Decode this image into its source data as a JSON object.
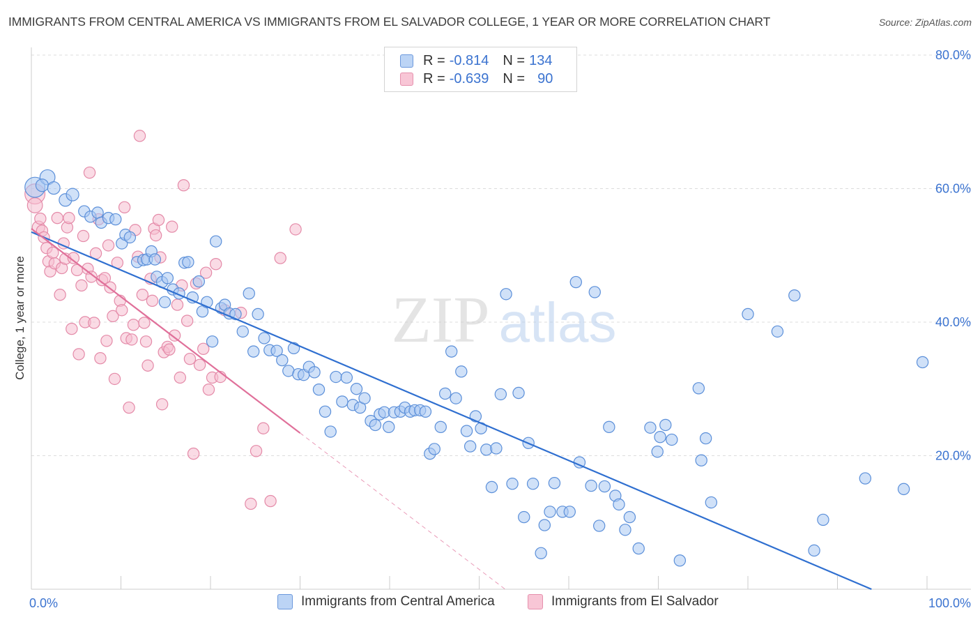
{
  "title": "IMMIGRANTS FROM CENTRAL AMERICA VS IMMIGRANTS FROM EL SALVADOR COLLEGE, 1 YEAR OR MORE CORRELATION CHART",
  "source": "Source: ZipAtlas.com",
  "watermark": {
    "zip": "ZIP",
    "atlas": "atlas"
  },
  "legend": {
    "series_a": {
      "r_label": "R =",
      "r_value": "-0.814",
      "n_label": "N =",
      "n_value": "134"
    },
    "series_b": {
      "r_label": "R =",
      "r_value": "-0.639",
      "n_label": "N =",
      "n_value": "90"
    }
  },
  "colors": {
    "blue_fill": "#a9c9f2",
    "blue_stroke": "#5b8fd9",
    "blue_line": "#2f6fd0",
    "pink_fill": "#f6bdd0",
    "pink_stroke": "#e48aa8",
    "pink_line": "#e0709a",
    "grid": "#dcdcdc",
    "tick_label": "#3b73d0"
  },
  "chart_data": {
    "type": "scatter",
    "title": "IMMIGRANTS FROM CENTRAL AMERICA VS IMMIGRANTS FROM EL SALVADOR COLLEGE, 1 YEAR OR MORE CORRELATION CHART",
    "xlabel": "",
    "ylabel": "College, 1 year or more",
    "xlim": [
      0,
      100
    ],
    "ylim": [
      0,
      80
    ],
    "x_tick_labels": [
      {
        "value": 0,
        "label": "0.0%"
      },
      {
        "value": 100,
        "label": "100.0%"
      }
    ],
    "y_ticks": [
      {
        "value": 20,
        "label": "20.0%"
      },
      {
        "value": 40,
        "label": "40.0%"
      },
      {
        "value": 60,
        "label": "60.0%"
      },
      {
        "value": 80,
        "label": "80.0%"
      }
    ],
    "series": [
      {
        "name": "Immigrants from Central America",
        "color": "#a9c9f2",
        "trend": {
          "x0": 0,
          "y0": 53.5,
          "x1": 93.8,
          "y1": 0,
          "dashed_extension": false
        },
        "points": [
          [
            0.4,
            60.2,
            1.6
          ],
          [
            1.8,
            61.7,
            1.2
          ],
          [
            1.2,
            60.5,
            1.0
          ],
          [
            2.5,
            60.1,
            1.0
          ],
          [
            3.8,
            58.3,
            1.0
          ],
          [
            4.6,
            59.1,
            1.0
          ],
          [
            5.9,
            56.6,
            0.9
          ],
          [
            6.6,
            55.8,
            0.9
          ],
          [
            7.4,
            56.4,
            0.9
          ],
          [
            7.8,
            54.9,
            0.9
          ],
          [
            8.6,
            55.6,
            0.9
          ],
          [
            9.4,
            55.4,
            0.9
          ],
          [
            10.1,
            51.8,
            0.9
          ],
          [
            10.5,
            53.1,
            0.9
          ],
          [
            11.0,
            52.7,
            0.9
          ],
          [
            11.8,
            49.0,
            0.9
          ],
          [
            12.5,
            49.3,
            0.9
          ],
          [
            12.9,
            49.4,
            0.9
          ],
          [
            13.4,
            50.6,
            0.9
          ],
          [
            13.8,
            49.4,
            0.9
          ],
          [
            14.0,
            46.8,
            0.9
          ],
          [
            14.6,
            46.0,
            0.9
          ],
          [
            14.9,
            43.0,
            0.9
          ],
          [
            15.2,
            46.6,
            0.9
          ],
          [
            15.8,
            44.9,
            0.9
          ],
          [
            16.5,
            44.3,
            0.9
          ],
          [
            17.1,
            48.9,
            0.9
          ],
          [
            17.5,
            49.0,
            0.9
          ],
          [
            18.0,
            43.7,
            0.9
          ],
          [
            18.7,
            46.1,
            0.9
          ],
          [
            19.1,
            41.6,
            0.9
          ],
          [
            19.6,
            43.0,
            0.9
          ],
          [
            20.2,
            37.1,
            0.9
          ],
          [
            20.6,
            52.1,
            0.9
          ],
          [
            21.2,
            42.1,
            0.9
          ],
          [
            21.6,
            42.6,
            0.9
          ],
          [
            22.1,
            41.3,
            0.9
          ],
          [
            22.8,
            41.2,
            0.9
          ],
          [
            23.6,
            38.6,
            0.9
          ],
          [
            24.3,
            44.3,
            0.9
          ],
          [
            24.8,
            35.6,
            0.9
          ],
          [
            25.3,
            41.2,
            0.9
          ],
          [
            26.0,
            37.6,
            0.9
          ],
          [
            26.6,
            35.8,
            0.9
          ],
          [
            27.4,
            35.7,
            0.9
          ],
          [
            28.0,
            34.3,
            0.9
          ],
          [
            28.7,
            32.7,
            0.9
          ],
          [
            29.3,
            36.1,
            0.9
          ],
          [
            29.8,
            32.2,
            0.9
          ],
          [
            30.4,
            32.1,
            0.9
          ],
          [
            31.0,
            33.3,
            0.9
          ],
          [
            31.6,
            32.5,
            0.9
          ],
          [
            32.1,
            29.9,
            0.9
          ],
          [
            32.8,
            26.6,
            0.9
          ],
          [
            33.4,
            23.6,
            0.9
          ],
          [
            34.0,
            31.8,
            0.9
          ],
          [
            34.7,
            28.1,
            0.9
          ],
          [
            35.2,
            31.7,
            0.9
          ],
          [
            35.9,
            27.6,
            0.9
          ],
          [
            36.3,
            30.0,
            0.9
          ],
          [
            36.7,
            27.2,
            0.9
          ],
          [
            37.2,
            28.6,
            0.9
          ],
          [
            37.9,
            25.2,
            0.9
          ],
          [
            38.4,
            24.6,
            0.9
          ],
          [
            38.9,
            26.2,
            0.9
          ],
          [
            39.4,
            26.5,
            0.9
          ],
          [
            39.9,
            24.3,
            0.9
          ],
          [
            40.5,
            26.5,
            0.9
          ],
          [
            41.2,
            26.6,
            0.9
          ],
          [
            41.7,
            27.2,
            0.9
          ],
          [
            42.3,
            26.6,
            0.9
          ],
          [
            42.8,
            26.8,
            0.9
          ],
          [
            43.4,
            26.8,
            0.9
          ],
          [
            44.0,
            26.6,
            0.9
          ],
          [
            44.5,
            20.3,
            0.9
          ],
          [
            45.0,
            21.0,
            0.9
          ],
          [
            45.7,
            24.3,
            0.9
          ],
          [
            46.2,
            29.3,
            0.9
          ],
          [
            46.9,
            35.6,
            0.9
          ],
          [
            47.4,
            28.6,
            0.9
          ],
          [
            48.0,
            32.6,
            0.9
          ],
          [
            48.6,
            23.7,
            0.9
          ],
          [
            49.0,
            21.4,
            0.9
          ],
          [
            49.6,
            25.9,
            0.9
          ],
          [
            50.2,
            24.1,
            0.9
          ],
          [
            50.8,
            20.9,
            0.9
          ],
          [
            51.4,
            15.3,
            0.9
          ],
          [
            51.9,
            21.1,
            0.9
          ],
          [
            52.4,
            29.2,
            0.9
          ],
          [
            53.0,
            44.2,
            0.9
          ],
          [
            53.7,
            15.8,
            0.9
          ],
          [
            54.4,
            29.4,
            0.9
          ],
          [
            55.0,
            10.8,
            0.9
          ],
          [
            55.5,
            21.9,
            0.9
          ],
          [
            56.0,
            15.8,
            0.9
          ],
          [
            56.9,
            5.4,
            0.9
          ],
          [
            57.3,
            9.6,
            0.9
          ],
          [
            57.9,
            11.6,
            0.9
          ],
          [
            58.4,
            15.9,
            0.9
          ],
          [
            59.3,
            11.6,
            0.9
          ],
          [
            60.1,
            11.6,
            0.9
          ],
          [
            60.8,
            46.0,
            0.9
          ],
          [
            61.2,
            19.0,
            0.9
          ],
          [
            62.5,
            15.5,
            0.9
          ],
          [
            62.9,
            44.5,
            0.9
          ],
          [
            63.4,
            9.5,
            0.9
          ],
          [
            64.0,
            15.4,
            0.9
          ],
          [
            64.5,
            24.3,
            0.9
          ],
          [
            65.2,
            14.0,
            0.9
          ],
          [
            65.6,
            12.7,
            0.9
          ],
          [
            66.3,
            8.9,
            0.9
          ],
          [
            66.8,
            10.8,
            0.9
          ],
          [
            67.8,
            6.1,
            0.9
          ],
          [
            69.1,
            24.2,
            0.9
          ],
          [
            69.9,
            20.6,
            0.9
          ],
          [
            70.2,
            22.8,
            0.9
          ],
          [
            70.8,
            24.6,
            0.9
          ],
          [
            71.5,
            22.4,
            0.9
          ],
          [
            72.4,
            4.3,
            0.9
          ],
          [
            74.5,
            30.1,
            0.9
          ],
          [
            74.8,
            19.3,
            0.9
          ],
          [
            75.3,
            22.6,
            0.9
          ],
          [
            75.9,
            13.0,
            0.9
          ],
          [
            80.0,
            41.2,
            0.9
          ],
          [
            83.3,
            38.6,
            0.9
          ],
          [
            85.2,
            44.0,
            0.9
          ],
          [
            87.4,
            5.8,
            0.9
          ],
          [
            88.4,
            10.4,
            0.9
          ],
          [
            93.1,
            16.6,
            0.9
          ],
          [
            97.4,
            15.0,
            0.9
          ],
          [
            99.5,
            34.0,
            0.9
          ]
        ]
      },
      {
        "name": "Immigrants from El Salvador",
        "color": "#f6bdd0",
        "trend": {
          "x0": 0,
          "y0": 54.0,
          "x1": 30.0,
          "y1": 23.4,
          "dashed_extension": true,
          "dashed_to": {
            "x": 52.9,
            "y": 0
          }
        },
        "points": [
          [
            0.4,
            59.2,
            1.6
          ],
          [
            0.4,
            57.5,
            1.2
          ],
          [
            0.8,
            54.2,
            1.0
          ],
          [
            1.0,
            55.5,
            0.9
          ],
          [
            1.2,
            53.7,
            0.9
          ],
          [
            1.4,
            52.7,
            0.9
          ],
          [
            1.7,
            51.1,
            0.9
          ],
          [
            1.9,
            49.1,
            0.9
          ],
          [
            2.1,
            47.6,
            0.9
          ],
          [
            2.4,
            50.4,
            0.9
          ],
          [
            2.6,
            48.8,
            0.9
          ],
          [
            2.9,
            55.6,
            0.9
          ],
          [
            3.2,
            44.1,
            0.9
          ],
          [
            3.4,
            48.1,
            0.9
          ],
          [
            3.6,
            51.8,
            0.9
          ],
          [
            3.8,
            49.5,
            0.9
          ],
          [
            4.0,
            54.2,
            0.9
          ],
          [
            4.2,
            55.6,
            0.9
          ],
          [
            4.5,
            39.0,
            0.9
          ],
          [
            4.7,
            49.6,
            0.9
          ],
          [
            5.1,
            47.8,
            0.9
          ],
          [
            5.3,
            35.2,
            0.9
          ],
          [
            5.6,
            45.5,
            0.9
          ],
          [
            5.8,
            52.9,
            0.9
          ],
          [
            6.0,
            40.0,
            0.9
          ],
          [
            6.3,
            48.0,
            0.9
          ],
          [
            6.5,
            62.4,
            0.9
          ],
          [
            6.7,
            46.8,
            0.9
          ],
          [
            7.0,
            39.9,
            0.9
          ],
          [
            7.2,
            50.3,
            0.9
          ],
          [
            7.5,
            55.4,
            0.9
          ],
          [
            7.7,
            34.6,
            0.9
          ],
          [
            7.9,
            46.3,
            0.9
          ],
          [
            8.2,
            46.6,
            0.9
          ],
          [
            8.4,
            37.2,
            0.9
          ],
          [
            8.6,
            51.5,
            0.9
          ],
          [
            8.8,
            45.2,
            0.9
          ],
          [
            9.1,
            40.9,
            0.9
          ],
          [
            9.3,
            31.5,
            0.9
          ],
          [
            9.6,
            48.9,
            0.9
          ],
          [
            9.9,
            43.2,
            0.9
          ],
          [
            10.1,
            41.8,
            0.9
          ],
          [
            10.4,
            57.2,
            0.9
          ],
          [
            10.6,
            37.6,
            0.9
          ],
          [
            10.9,
            27.2,
            0.9
          ],
          [
            11.2,
            37.4,
            0.9
          ],
          [
            11.4,
            39.6,
            0.9
          ],
          [
            11.6,
            53.8,
            0.9
          ],
          [
            11.9,
            49.8,
            0.9
          ],
          [
            12.1,
            67.9,
            0.9
          ],
          [
            12.4,
            44.1,
            0.9
          ],
          [
            12.6,
            39.9,
            0.9
          ],
          [
            12.8,
            37.1,
            0.9
          ],
          [
            13.0,
            33.5,
            0.9
          ],
          [
            13.3,
            46.5,
            0.9
          ],
          [
            13.5,
            43.2,
            0.9
          ],
          [
            13.7,
            54.0,
            0.9
          ],
          [
            13.9,
            53.0,
            0.9
          ],
          [
            14.2,
            55.3,
            0.9
          ],
          [
            14.4,
            49.7,
            0.9
          ],
          [
            14.6,
            27.7,
            0.9
          ],
          [
            14.8,
            35.5,
            0.9
          ],
          [
            15.2,
            36.3,
            0.9
          ],
          [
            15.4,
            35.9,
            0.9
          ],
          [
            15.7,
            54.3,
            0.9
          ],
          [
            16.0,
            38.0,
            0.9
          ],
          [
            16.3,
            42.6,
            0.9
          ],
          [
            16.6,
            31.7,
            0.9
          ],
          [
            16.8,
            45.5,
            0.9
          ],
          [
            17.0,
            60.5,
            0.9
          ],
          [
            17.4,
            40.2,
            0.9
          ],
          [
            17.7,
            34.5,
            0.9
          ],
          [
            18.1,
            20.3,
            0.9
          ],
          [
            18.4,
            45.8,
            0.9
          ],
          [
            18.8,
            33.6,
            0.9
          ],
          [
            19.2,
            36.0,
            0.9
          ],
          [
            19.5,
            47.4,
            0.9
          ],
          [
            19.8,
            29.9,
            0.9
          ],
          [
            20.2,
            31.7,
            0.9
          ],
          [
            20.6,
            48.7,
            0.9
          ],
          [
            21.1,
            31.8,
            0.9
          ],
          [
            21.6,
            41.8,
            0.9
          ],
          [
            23.4,
            41.4,
            0.9
          ],
          [
            24.5,
            12.8,
            0.9
          ],
          [
            25.1,
            20.7,
            0.9
          ],
          [
            25.9,
            24.1,
            0.9
          ],
          [
            26.7,
            13.2,
            0.9
          ],
          [
            27.8,
            49.6,
            0.9
          ],
          [
            29.5,
            53.9,
            0.9
          ]
        ]
      }
    ]
  }
}
